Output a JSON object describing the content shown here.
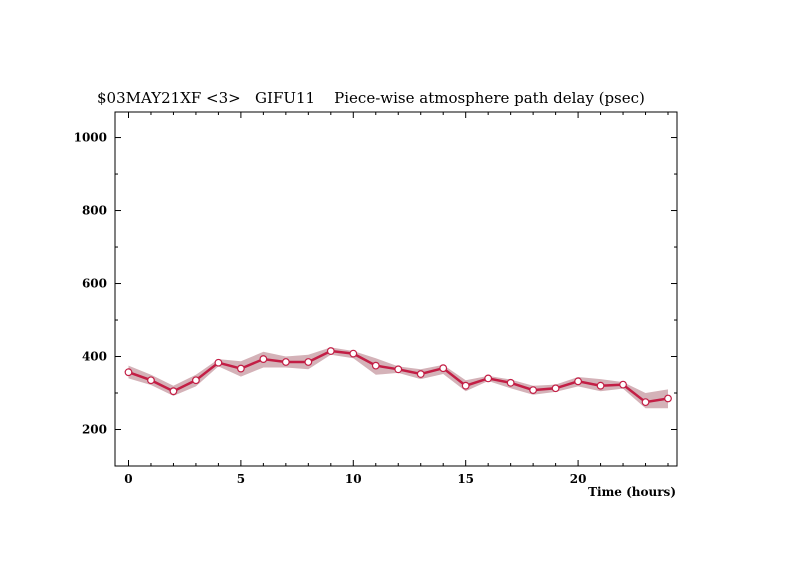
{
  "chart_data": {
    "type": "line",
    "title": "$03MAY21XF <3>   GIFU11    Piece-wise atmosphere path delay (psec)",
    "xlabel": "Time (hours)",
    "ylabel": "",
    "xlim": [
      -0.6,
      24.4
    ],
    "ylim": [
      100,
      1070
    ],
    "xticks": [
      0,
      5,
      10,
      15,
      20
    ],
    "yticks": [
      200,
      400,
      600,
      800,
      1000
    ],
    "grid": false,
    "series": [
      {
        "x": [
          0,
          1,
          2,
          3,
          4,
          5,
          6,
          7,
          8,
          9,
          10,
          11,
          12,
          13,
          14,
          15,
          16,
          17,
          18,
          19,
          20,
          21,
          22,
          23,
          24
        ],
        "y": [
          357,
          335,
          305,
          335,
          383,
          367,
          393,
          385,
          385,
          415,
          408,
          375,
          365,
          352,
          368,
          320,
          340,
          328,
          308,
          313,
          332,
          320,
          323,
          275,
          285
        ],
        "upper": [
          375,
          350,
          320,
          350,
          393,
          387,
          413,
          400,
          405,
          425,
          415,
          395,
          373,
          365,
          377,
          335,
          347,
          337,
          320,
          323,
          344,
          338,
          330,
          300,
          310
        ],
        "lower": [
          340,
          322,
          292,
          318,
          373,
          345,
          370,
          370,
          365,
          405,
          395,
          350,
          355,
          338,
          352,
          305,
          333,
          313,
          295,
          303,
          318,
          305,
          312,
          258,
          258
        ]
      }
    ],
    "colors": {
      "line": "#c31e45",
      "band": "#d4b2b8",
      "marker_fill": "#ffffff"
    }
  }
}
